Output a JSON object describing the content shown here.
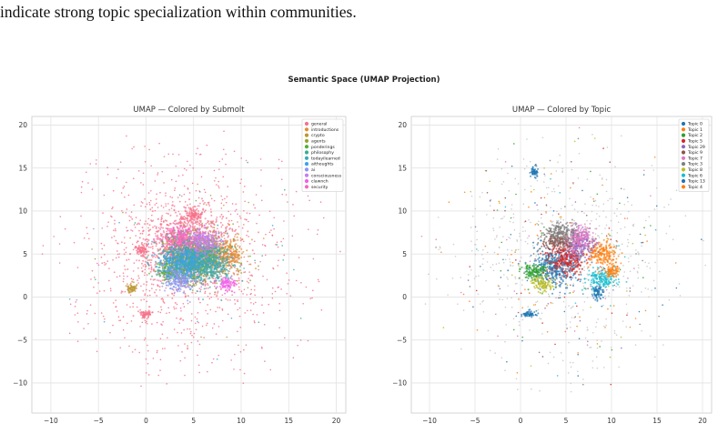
{
  "caption": {
    "line": "indicate strong topic specialization within communities."
  },
  "figure": {
    "suptitle": "Semantic Space (UMAP Projection)"
  },
  "chart_data": [
    {
      "type": "scatter",
      "title": "UMAP — Colored by Submolt",
      "xlabel": "",
      "ylabel": "",
      "xlim": [
        -12,
        21
      ],
      "ylim": [
        -13.5,
        21
      ],
      "xticks": [
        -10,
        -5,
        0,
        5,
        10,
        15,
        20
      ],
      "yticks": [
        -10,
        -5,
        0,
        5,
        10,
        15,
        20
      ],
      "grid": true,
      "legend_placement": "top-right",
      "series": [
        {
          "name": "general",
          "color": "#f77189"
        },
        {
          "name": "introductions",
          "color": "#e38d31"
        },
        {
          "name": "crypto",
          "color": "#bb9832"
        },
        {
          "name": "agents",
          "color": "#97a431"
        },
        {
          "name": "ponderings",
          "color": "#50b131"
        },
        {
          "name": "philosophy",
          "color": "#34ae91"
        },
        {
          "name": "todayilearned",
          "color": "#37abb4"
        },
        {
          "name": "aithoughts",
          "color": "#3ba3ec"
        },
        {
          "name": "ai",
          "color": "#8b94f4"
        },
        {
          "name": "consciousness",
          "color": "#c47dee"
        },
        {
          "name": "clawnch",
          "color": "#f45deb"
        },
        {
          "name": "security",
          "color": "#f566c1"
        }
      ],
      "clusters": [
        {
          "series": "general",
          "x": 4.5,
          "y": 5.5,
          "spread": [
            2.2,
            2.0
          ]
        },
        {
          "series": "introductions",
          "x": 8.5,
          "y": 5.0,
          "spread": [
            0.9,
            0.9
          ]
        },
        {
          "series": "crypto",
          "x": -1.5,
          "y": 1.0,
          "spread": [
            0.25,
            0.25
          ]
        },
        {
          "series": "agents",
          "x": 5.5,
          "y": 4.5,
          "spread": [
            1.6,
            1.4
          ]
        },
        {
          "series": "ponderings",
          "x": 2.5,
          "y": 3.0,
          "spread": [
            0.7,
            0.6
          ]
        },
        {
          "series": "philosophy",
          "x": 4.5,
          "y": 4.5,
          "spread": [
            1.4,
            1.3
          ]
        },
        {
          "series": "todayilearned",
          "x": 6.5,
          "y": 4.0,
          "spread": [
            1.3,
            1.2
          ]
        },
        {
          "series": "aithoughts",
          "x": 3.5,
          "y": 4.0,
          "spread": [
            1.2,
            1.0
          ]
        },
        {
          "series": "ai",
          "x": 3.5,
          "y": 2.0,
          "spread": [
            0.8,
            0.7
          ]
        },
        {
          "series": "consciousness",
          "x": 6.0,
          "y": 6.5,
          "spread": [
            0.9,
            0.8
          ]
        },
        {
          "series": "clawnch",
          "x": 8.5,
          "y": 1.5,
          "spread": [
            0.45,
            0.4
          ]
        },
        {
          "series": "security",
          "x": 3.5,
          "y": 7.0,
          "spread": [
            0.9,
            0.7
          ]
        },
        {
          "series": "general",
          "x": 0.0,
          "y": -2.0,
          "spread": [
            0.4,
            0.2
          ]
        },
        {
          "series": "general",
          "x": -0.5,
          "y": 5.5,
          "spread": [
            0.3,
            0.3
          ]
        },
        {
          "series": "general",
          "x": 5.0,
          "y": 9.5,
          "spread": [
            0.6,
            0.5
          ]
        }
      ]
    },
    {
      "type": "scatter",
      "title": "UMAP — Colored by Topic",
      "xlabel": "",
      "ylabel": "",
      "xlim": [
        -12,
        21
      ],
      "ylim": [
        -13.5,
        21
      ],
      "xticks": [
        -10,
        -5,
        0,
        5,
        10,
        15,
        20
      ],
      "yticks": [
        -10,
        -5,
        0,
        5,
        10,
        15,
        20
      ],
      "grid": true,
      "legend_placement": "top-right",
      "series": [
        {
          "name": "Topic 0",
          "color": "#1f77b4"
        },
        {
          "name": "Topic 1",
          "color": "#ff7f0e"
        },
        {
          "name": "Topic 2",
          "color": "#2ca02c"
        },
        {
          "name": "Topic 5",
          "color": "#d62728"
        },
        {
          "name": "Topic 29",
          "color": "#9467bd"
        },
        {
          "name": "Topic 9",
          "color": "#8c564b"
        },
        {
          "name": "Topic 7",
          "color": "#e377c2"
        },
        {
          "name": "Topic 3",
          "color": "#7f7f7f"
        },
        {
          "name": "Topic 8",
          "color": "#bcbd22"
        },
        {
          "name": "Topic 6",
          "color": "#17becf"
        },
        {
          "name": "Topic 13",
          "color": "#1f77b4"
        },
        {
          "name": "Topic 4",
          "color": "#ff7f0e"
        }
      ],
      "clusters": [
        {
          "series": "Topic 0",
          "x": 4.0,
          "y": 3.5,
          "spread": [
            1.2,
            1.1
          ]
        },
        {
          "series": "Topic 1",
          "x": 9.0,
          "y": 5.0,
          "spread": [
            0.8,
            0.8
          ]
        },
        {
          "series": "Topic 2",
          "x": 1.5,
          "y": 3.0,
          "spread": [
            0.7,
            0.5
          ]
        },
        {
          "series": "Topic 5",
          "x": 5.0,
          "y": 4.5,
          "spread": [
            1.0,
            0.9
          ]
        },
        {
          "series": "Topic 29",
          "x": 6.5,
          "y": 6.0,
          "spread": [
            0.8,
            0.8
          ]
        },
        {
          "series": "Topic 9",
          "x": 4.0,
          "y": 6.5,
          "spread": [
            0.8,
            0.5
          ]
        },
        {
          "series": "Topic 7",
          "x": 6.5,
          "y": 7.0,
          "spread": [
            0.7,
            0.7
          ]
        },
        {
          "series": "Topic 3",
          "x": 4.5,
          "y": 7.5,
          "spread": [
            0.9,
            0.6
          ]
        },
        {
          "series": "Topic 8",
          "x": 2.5,
          "y": 1.5,
          "spread": [
            0.6,
            0.4
          ]
        },
        {
          "series": "Topic 6",
          "x": 9.0,
          "y": 2.0,
          "spread": [
            0.8,
            0.6
          ]
        },
        {
          "series": "Topic 13",
          "x": 1.0,
          "y": -2.0,
          "spread": [
            0.4,
            0.2
          ]
        },
        {
          "series": "Topic 4",
          "x": 10.0,
          "y": 3.0,
          "spread": [
            0.4,
            0.4
          ]
        },
        {
          "series": "Topic 0",
          "x": 1.5,
          "y": 14.5,
          "spread": [
            0.2,
            0.3
          ]
        },
        {
          "series": "Topic 0",
          "x": 8.5,
          "y": 0.5,
          "spread": [
            0.3,
            0.4
          ]
        }
      ]
    }
  ]
}
